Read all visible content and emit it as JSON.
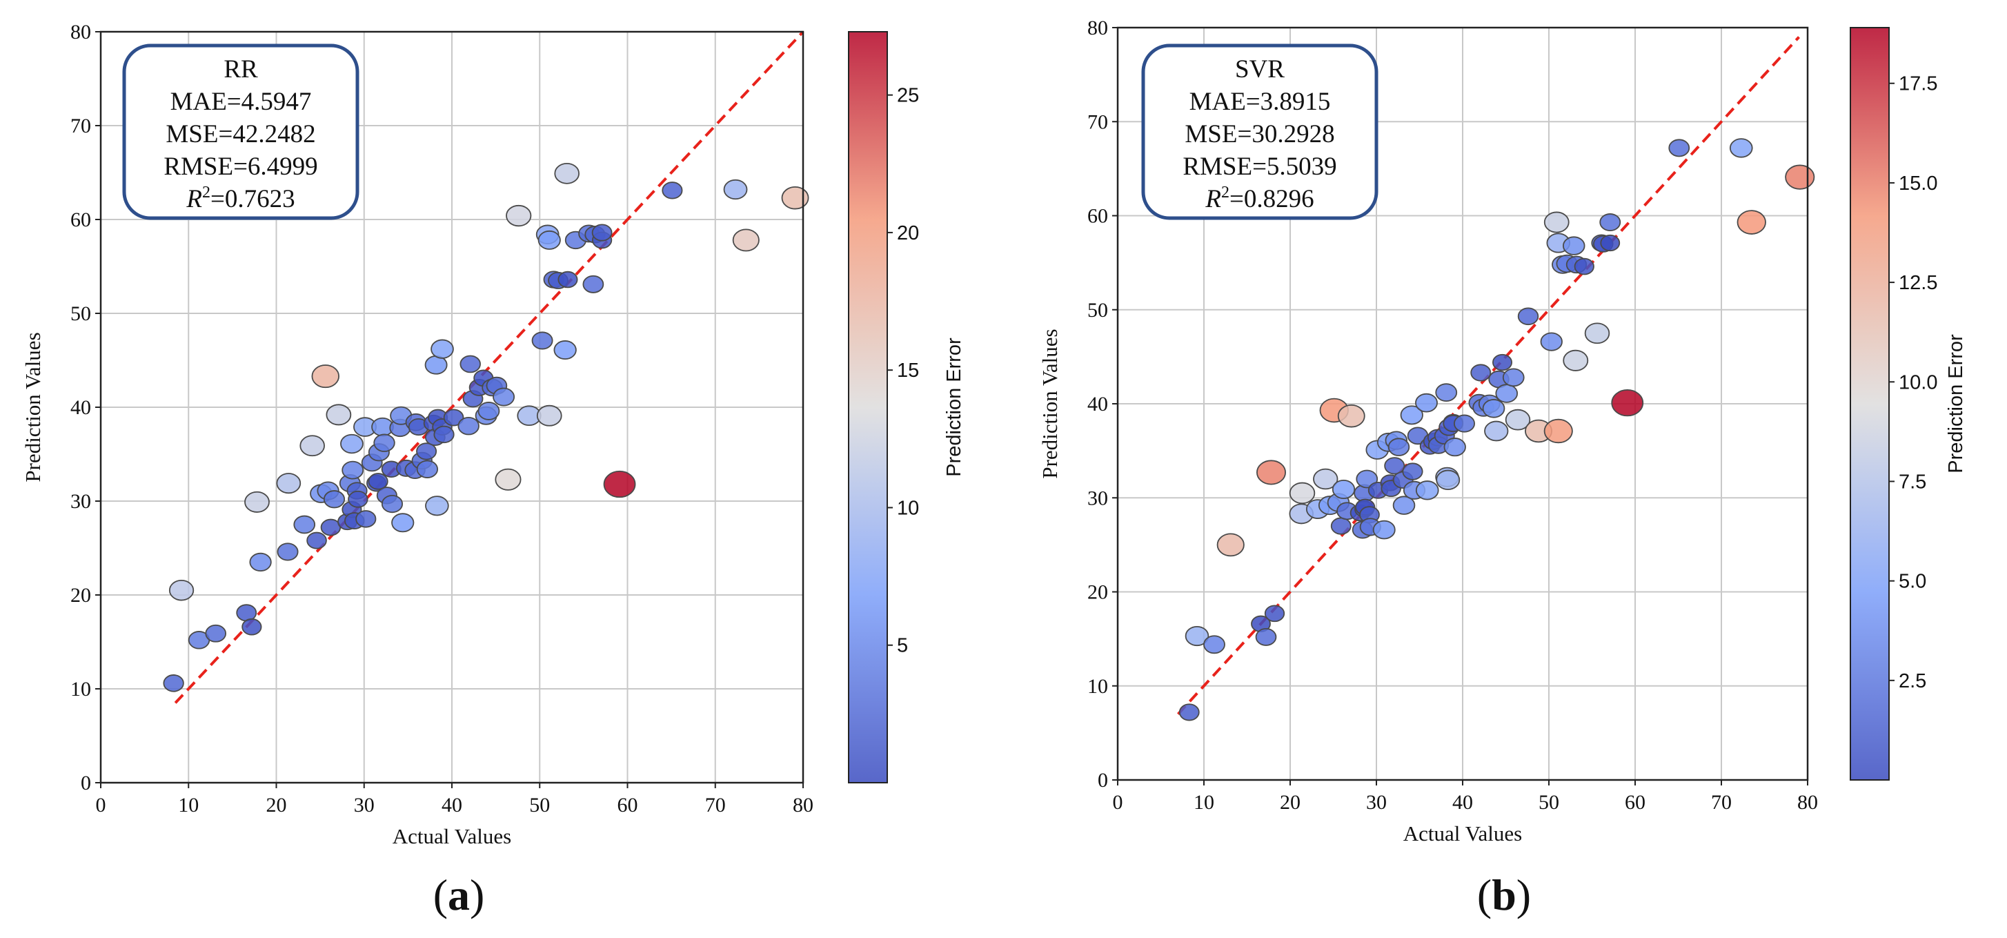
{
  "figure_labels": {
    "a": "a",
    "b": "b"
  },
  "chart_data": [
    {
      "id": "a",
      "type": "scatter",
      "model": "RR",
      "metrics": {
        "mae": "MAE=4.5947",
        "mse": "MSE=42.2482",
        "rmse": "RMSE=6.4999",
        "r2_prefix": "R",
        "r2_sup": "2",
        "r2_value": "=0.7623"
      },
      "xlabel": "Actual Values",
      "ylabel": "Prediction Values",
      "colorbar_label": "Prediction Error",
      "xlim": [
        0,
        80
      ],
      "ylim": [
        0,
        80
      ],
      "xticks": [
        0,
        10,
        20,
        30,
        40,
        50,
        60,
        70,
        80
      ],
      "yticks": [
        0,
        10,
        20,
        30,
        40,
        50,
        60,
        70,
        80
      ],
      "colorbar_range": [
        0,
        27.3
      ],
      "colorbar_ticks": [
        5,
        10,
        15,
        20,
        25
      ],
      "grid": true,
      "reference_line": {
        "x": [
          8.5,
          80
        ],
        "y": [
          8.5,
          80
        ]
      },
      "points": [
        [
          8.3,
          10.6
        ],
        [
          9.2,
          20.5
        ],
        [
          11.2,
          15.2
        ],
        [
          13.1,
          15.9
        ],
        [
          16.6,
          18.1
        ],
        [
          17.2,
          16.6
        ],
        [
          17.8,
          29.9
        ],
        [
          18.2,
          23.5
        ],
        [
          21.3,
          24.6
        ],
        [
          21.4,
          31.9
        ],
        [
          23.2,
          27.5
        ],
        [
          24.1,
          35.9
        ],
        [
          24.6,
          25.8
        ],
        [
          25.1,
          30.8
        ],
        [
          25.6,
          43.3
        ],
        [
          25.9,
          31.1
        ],
        [
          26.2,
          27.2
        ],
        [
          26.6,
          30.2
        ],
        [
          27.1,
          39.2
        ],
        [
          28.1,
          27.8
        ],
        [
          28.4,
          31.9
        ],
        [
          28.6,
          29.1
        ],
        [
          28.6,
          36.1
        ],
        [
          28.7,
          33.3
        ],
        [
          28.9,
          27.9
        ],
        [
          29.2,
          31.1
        ],
        [
          29.3,
          30.2
        ],
        [
          30.1,
          37.9
        ],
        [
          30.2,
          28.1
        ],
        [
          30.9,
          34.1
        ],
        [
          31.4,
          31.9
        ],
        [
          31.6,
          32.1
        ],
        [
          31.7,
          35.2
        ],
        [
          32.1,
          37.9
        ],
        [
          32.3,
          36.2
        ],
        [
          32.6,
          30.6
        ],
        [
          33.1,
          33.4
        ],
        [
          33.2,
          29.7
        ],
        [
          34.1,
          37.8
        ],
        [
          34.2,
          39.1
        ],
        [
          34.4,
          27.7
        ],
        [
          34.8,
          33.5
        ],
        [
          35.8,
          33.3
        ],
        [
          35.9,
          38.4
        ],
        [
          36.2,
          37.9
        ],
        [
          36.6,
          34.3
        ],
        [
          37.1,
          35.3
        ],
        [
          37.2,
          33.4
        ],
        [
          37.9,
          38.3
        ],
        [
          38.1,
          36.8
        ],
        [
          38.2,
          44.5
        ],
        [
          38.3,
          29.5
        ],
        [
          38.4,
          38.9
        ],
        [
          38.9,
          46.2
        ],
        [
          38.9,
          37.9
        ],
        [
          39.1,
          37.1
        ],
        [
          40.2,
          38.9
        ],
        [
          41.9,
          38.0
        ],
        [
          42.1,
          44.6
        ],
        [
          42.4,
          40.9
        ],
        [
          43.1,
          42.1
        ],
        [
          43.6,
          43.1
        ],
        [
          43.9,
          39.1
        ],
        [
          44.2,
          39.6
        ],
        [
          44.6,
          42.1
        ],
        [
          45.1,
          42.3
        ],
        [
          45.9,
          41.1
        ],
        [
          46.4,
          32.3
        ],
        [
          47.6,
          60.4
        ],
        [
          48.8,
          39.1
        ],
        [
          50.3,
          47.1
        ],
        [
          50.9,
          58.4
        ],
        [
          51.1,
          39.1
        ],
        [
          51.1,
          57.8
        ],
        [
          51.6,
          53.6
        ],
        [
          52.1,
          53.5
        ],
        [
          52.9,
          46.1
        ],
        [
          53.1,
          64.9
        ],
        [
          53.2,
          53.6
        ],
        [
          54.1,
          57.8
        ],
        [
          55.6,
          58.5
        ],
        [
          56.1,
          53.1
        ],
        [
          56.3,
          58.4
        ],
        [
          57.1,
          57.8
        ],
        [
          57.1,
          58.6
        ],
        [
          59.1,
          31.8
        ],
        [
          65.1,
          63.1
        ],
        [
          72.3,
          63.2
        ],
        [
          73.5,
          57.8
        ],
        [
          79.1,
          62.3
        ]
      ]
    },
    {
      "id": "b",
      "type": "scatter",
      "model": "SVR",
      "metrics": {
        "mae": "MAE=3.8915",
        "mse": "MSE=30.2928",
        "rmse": "RMSE=5.5039",
        "r2_prefix": "R",
        "r2_sup": "2",
        "r2_value": "=0.8296"
      },
      "xlabel": "Actual Values",
      "ylabel": "Prediction Values",
      "colorbar_label": "Prediction Error",
      "xlim": [
        0,
        80
      ],
      "ylim": [
        0,
        80
      ],
      "xticks": [
        0,
        10,
        20,
        30,
        40,
        50,
        60,
        70,
        80
      ],
      "yticks": [
        0,
        10,
        20,
        30,
        40,
        50,
        60,
        70,
        80
      ],
      "colorbar_range": [
        0,
        18.9
      ],
      "colorbar_ticks": [
        2.5,
        5.0,
        7.5,
        10.0,
        12.5,
        15.0,
        17.5
      ],
      "grid": true,
      "reference_line": {
        "x": [
          7,
          79
        ],
        "y": [
          7,
          79
        ]
      },
      "points": [
        [
          8.3,
          7.2
        ],
        [
          9.2,
          15.3
        ],
        [
          11.2,
          14.4
        ],
        [
          13.1,
          25.0
        ],
        [
          16.6,
          16.6
        ],
        [
          17.2,
          15.2
        ],
        [
          17.8,
          32.7
        ],
        [
          18.2,
          17.7
        ],
        [
          21.3,
          28.3
        ],
        [
          21.4,
          30.5
        ],
        [
          23.2,
          28.8
        ],
        [
          24.1,
          32.0
        ],
        [
          24.6,
          29.2
        ],
        [
          25.1,
          39.3
        ],
        [
          25.6,
          29.5
        ],
        [
          25.9,
          27.0
        ],
        [
          26.2,
          30.9
        ],
        [
          26.6,
          28.6
        ],
        [
          27.1,
          38.7
        ],
        [
          28.1,
          28.4
        ],
        [
          28.4,
          26.6
        ],
        [
          28.6,
          28.8
        ],
        [
          28.6,
          30.5
        ],
        [
          28.7,
          29.0
        ],
        [
          28.9,
          32.0
        ],
        [
          29.2,
          28.2
        ],
        [
          29.3,
          26.9
        ],
        [
          30.1,
          35.1
        ],
        [
          30.2,
          30.8
        ],
        [
          30.9,
          26.6
        ],
        [
          31.4,
          35.9
        ],
        [
          31.6,
          31.6
        ],
        [
          31.7,
          31.0
        ],
        [
          32.1,
          33.4
        ],
        [
          32.3,
          36.1
        ],
        [
          32.6,
          35.4
        ],
        [
          33.1,
          31.9
        ],
        [
          33.2,
          29.2
        ],
        [
          34.1,
          38.8
        ],
        [
          34.2,
          32.8
        ],
        [
          34.4,
          30.8
        ],
        [
          34.8,
          36.6
        ],
        [
          35.8,
          40.1
        ],
        [
          35.9,
          30.8
        ],
        [
          36.2,
          35.5
        ],
        [
          36.6,
          36.0
        ],
        [
          37.1,
          36.4
        ],
        [
          37.2,
          35.6
        ],
        [
          37.9,
          36.6
        ],
        [
          38.1,
          41.2
        ],
        [
          38.2,
          32.2
        ],
        [
          38.3,
          31.9
        ],
        [
          38.4,
          37.5
        ],
        [
          38.9,
          38.0
        ],
        [
          38.9,
          37.9
        ],
        [
          39.1,
          35.4
        ],
        [
          40.2,
          37.9
        ],
        [
          41.9,
          40.1
        ],
        [
          42.1,
          43.3
        ],
        [
          42.4,
          39.6
        ],
        [
          43.1,
          40.0
        ],
        [
          43.6,
          39.5
        ],
        [
          43.9,
          37.1
        ],
        [
          44.2,
          42.6
        ],
        [
          44.6,
          44.4
        ],
        [
          45.1,
          41.1
        ],
        [
          45.9,
          42.8
        ],
        [
          46.4,
          38.3
        ],
        [
          47.6,
          49.3
        ],
        [
          48.8,
          37.1
        ],
        [
          50.3,
          46.6
        ],
        [
          50.9,
          59.3
        ],
        [
          51.1,
          57.1
        ],
        [
          51.1,
          37.1
        ],
        [
          51.6,
          54.8
        ],
        [
          52.1,
          54.9
        ],
        [
          52.9,
          56.8
        ],
        [
          53.1,
          44.6
        ],
        [
          53.2,
          54.8
        ],
        [
          54.1,
          54.6
        ],
        [
          55.6,
          47.5
        ],
        [
          56.1,
          57.1
        ],
        [
          56.3,
          57.0
        ],
        [
          57.1,
          59.3
        ],
        [
          57.1,
          57.1
        ],
        [
          59.1,
          40.1
        ],
        [
          65.1,
          67.2
        ],
        [
          72.3,
          67.2
        ],
        [
          73.5,
          59.3
        ],
        [
          79.1,
          64.1
        ]
      ]
    }
  ]
}
